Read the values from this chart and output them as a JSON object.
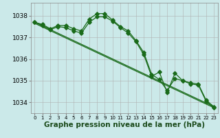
{
  "background_color": "#cbe9e9",
  "plot_bg_color": "#cbe9e9",
  "grid_color": "#b0b0b0",
  "line_color": "#1a6b1a",
  "marker_color": "#1a6b1a",
  "xlabel": "Graphe pression niveau de la mer (hPa)",
  "xlabel_fontsize": 7.5,
  "ylim": [
    1033.5,
    1038.6
  ],
  "xlim": [
    -0.5,
    23.5
  ],
  "yticks": [
    1034,
    1035,
    1036,
    1037,
    1038
  ],
  "xticks": [
    0,
    1,
    2,
    3,
    4,
    5,
    6,
    7,
    8,
    9,
    10,
    11,
    12,
    13,
    14,
    15,
    16,
    17,
    18,
    19,
    20,
    21,
    22,
    23
  ],
  "line_main": {
    "x": [
      0,
      1,
      2,
      3,
      4,
      5,
      6,
      7,
      8,
      9,
      10,
      11,
      12,
      13,
      14,
      15,
      16,
      17,
      18,
      19,
      20,
      21,
      22,
      23
    ],
    "y": [
      1037.7,
      1037.6,
      1037.4,
      1037.55,
      1037.55,
      1037.4,
      1037.3,
      1037.85,
      1038.1,
      1038.1,
      1037.8,
      1037.5,
      1037.3,
      1036.85,
      1036.3,
      1035.3,
      1035.05,
      1034.55,
      1035.1,
      1035.0,
      1034.9,
      1034.85,
      1034.1,
      1033.8
    ]
  },
  "line_second": {
    "x": [
      0,
      1,
      2,
      3,
      4,
      5,
      6,
      7,
      8,
      9,
      10,
      11,
      12,
      13,
      14,
      15,
      16,
      17,
      18,
      19,
      20,
      21,
      22,
      23
    ],
    "y": [
      1037.7,
      1037.55,
      1037.35,
      1037.5,
      1037.45,
      1037.3,
      1037.2,
      1037.7,
      1037.95,
      1037.95,
      1037.75,
      1037.45,
      1037.2,
      1036.8,
      1036.2,
      1035.2,
      1035.4,
      1034.45,
      1035.35,
      1035.0,
      1034.85,
      1034.8,
      1034.05,
      1033.75
    ]
  },
  "line_straight1": {
    "x": [
      0,
      23
    ],
    "y": [
      1037.7,
      1033.8
    ]
  },
  "line_straight2": {
    "x": [
      0,
      23
    ],
    "y": [
      1037.65,
      1033.75
    ]
  }
}
